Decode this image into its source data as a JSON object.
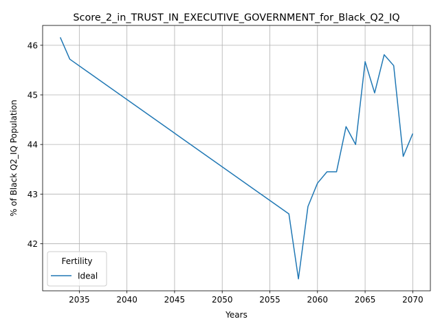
{
  "chart_data": {
    "type": "line",
    "title": "Score_2_in_TRUST_IN_EXECUTIVE_GOVERNMENT_for_Black_Q2_IQ",
    "xlabel": "Years",
    "ylabel": "% of Black Q2_IQ Population",
    "xlim": [
      2031.15,
      2071.85
    ],
    "ylim": [
      41.05,
      46.4
    ],
    "xticks": [
      2035,
      2040,
      2045,
      2050,
      2055,
      2060,
      2065,
      2070
    ],
    "yticks": [
      42,
      43,
      44,
      45,
      46
    ],
    "grid": true,
    "legend": {
      "title": "Fertility",
      "placement": "lower-left"
    },
    "series": [
      {
        "name": "Ideal",
        "color": "#1f77b4",
        "x": [
          2033,
          2034,
          2057,
          2058,
          2059,
          2060,
          2061,
          2062,
          2063,
          2064,
          2065,
          2066,
          2067,
          2068,
          2069,
          2070
        ],
        "y": [
          46.16,
          45.72,
          42.6,
          41.29,
          42.75,
          43.22,
          43.45,
          43.45,
          44.36,
          44.0,
          45.67,
          45.04,
          45.81,
          45.59,
          43.76,
          44.22
        ]
      }
    ]
  }
}
